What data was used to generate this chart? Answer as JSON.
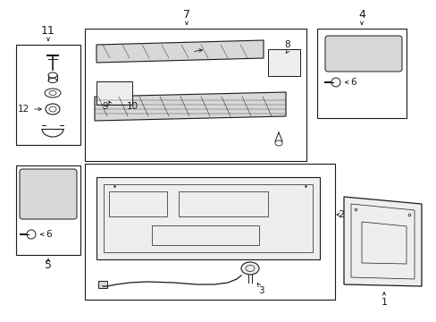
{
  "bg_color": "#ffffff",
  "line_color": "#1a1a1a",
  "gray_fill": "#d8d8d8",
  "light_fill": "#eeeeee",
  "fig_width": 4.89,
  "fig_height": 3.6,
  "dpi": 100
}
